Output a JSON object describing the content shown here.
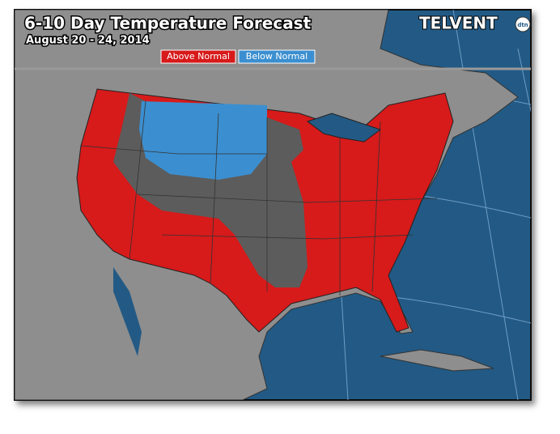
{
  "header": {
    "title": "6-10 Day Temperature Forecast",
    "subtitle": "August 20 - 24, 2014"
  },
  "legend": [
    {
      "label": "Above Normal",
      "color": "#d71a1a"
    },
    {
      "label": "Below Normal",
      "color": "#3b8fd0"
    }
  ],
  "logo": {
    "name": "TELVENT",
    "badge": "dtn"
  }
}
